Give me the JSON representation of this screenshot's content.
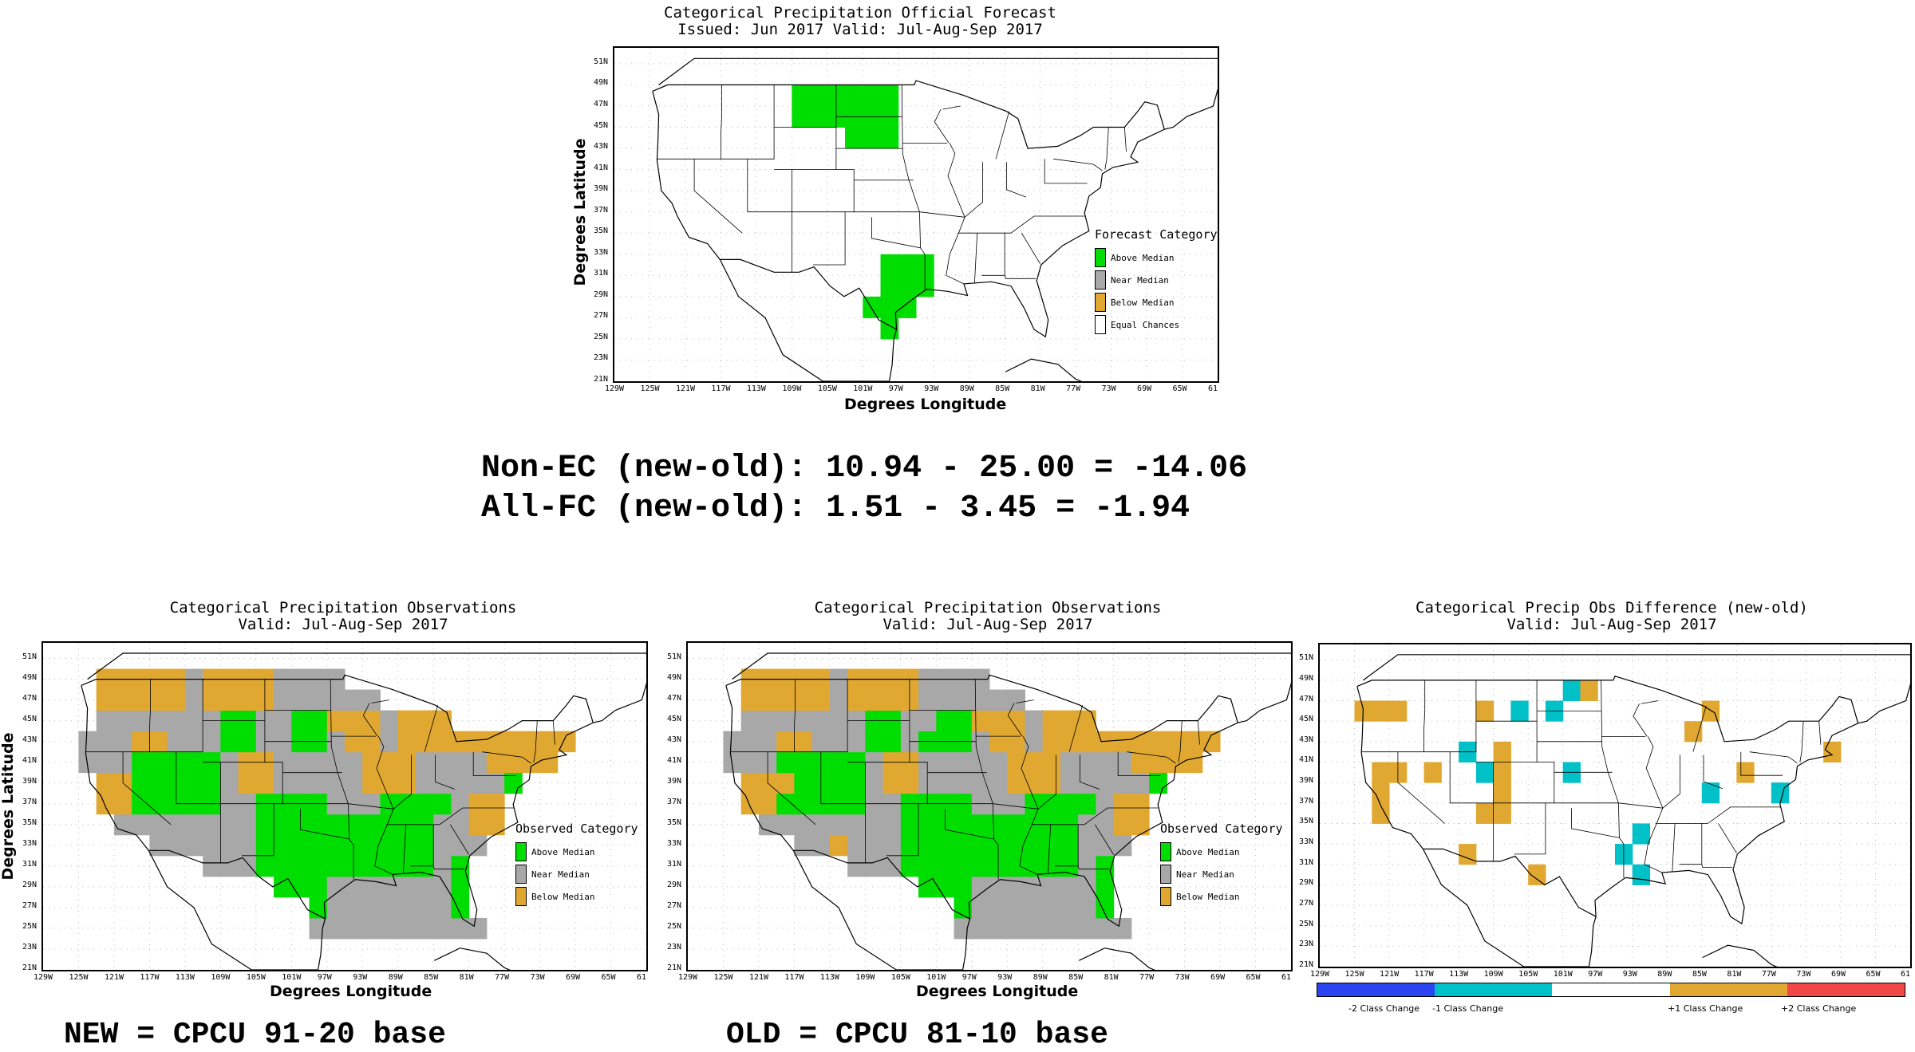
{
  "colors": {
    "above": "#00dd00",
    "near": "#a8a8a8",
    "below": "#e0a830",
    "equal": "#ffffff",
    "minus2": "#2a44f0",
    "minus1": "#00c0c8",
    "zero": "#ffffff",
    "plus1": "#e0a830",
    "plus2": "#f04848"
  },
  "ticks": {
    "lon": [
      "129W",
      "125W",
      "121W",
      "117W",
      "113W",
      "109W",
      "105W",
      "101W",
      "97W",
      "93W",
      "89W",
      "85W",
      "81W",
      "77W",
      "73W",
      "69W",
      "65W",
      "61"
    ],
    "lat": [
      "51N",
      "49N",
      "47N",
      "45N",
      "43N",
      "41N",
      "39N",
      "37N",
      "35N",
      "33N",
      "31N",
      "29N",
      "27N",
      "25N",
      "23N",
      "21N"
    ]
  },
  "axis": {
    "xlabel": "Degrees Longitude",
    "ylabel": "Degrees Latitude"
  },
  "forecast": {
    "title1": "Categorical Precipitation Official Forecast",
    "title2": "Issued: Jun 2017 Valid: Jul-Aug-Sep 2017",
    "legend_title": "Forecast Category",
    "legend": [
      {
        "label": "Above Median",
        "color": "#00dd00"
      },
      {
        "label": "Near Median",
        "color": "#a8a8a8"
      },
      {
        "label": "Below Median",
        "color": "#e0a830"
      },
      {
        "label": "Equal Chances",
        "color": "#ffffff"
      }
    ]
  },
  "stats": {
    "line1": "Non-EC (new-old): 10.94 - 25.00 = -14.06",
    "line2": "All-FC (new-old): 1.51 - 3.45 = -1.94"
  },
  "obs_new": {
    "title1": "Categorical Precipitation Observations",
    "title2": "Valid: Jul-Aug-Sep 2017",
    "legend_title": "Observed Category",
    "legend": [
      {
        "label": "Above Median",
        "color": "#00dd00"
      },
      {
        "label": "Near Median",
        "color": "#a8a8a8"
      },
      {
        "label": "Below Median",
        "color": "#e0a830"
      }
    ],
    "base": "NEW = CPCU 91-20 base"
  },
  "obs_old": {
    "title1": "Categorical Precipitation Observations",
    "title2": "Valid: Jul-Aug-Sep 2017",
    "legend_title": "Observed Category",
    "legend": [
      {
        "label": "Above Median",
        "color": "#00dd00"
      },
      {
        "label": "Near Median",
        "color": "#a8a8a8"
      },
      {
        "label": "Below Median",
        "color": "#e0a830"
      }
    ],
    "base": "OLD = CPCU 81-10 base"
  },
  "diff": {
    "title1": "Categorical Precip Obs Difference (new-old)",
    "title2": "Valid: Jul-Aug-Sep 2017",
    "colorbar": [
      "-2 Class Change",
      "-1 Class Change",
      "+1 Class Change",
      "+2 Class Change"
    ]
  }
}
